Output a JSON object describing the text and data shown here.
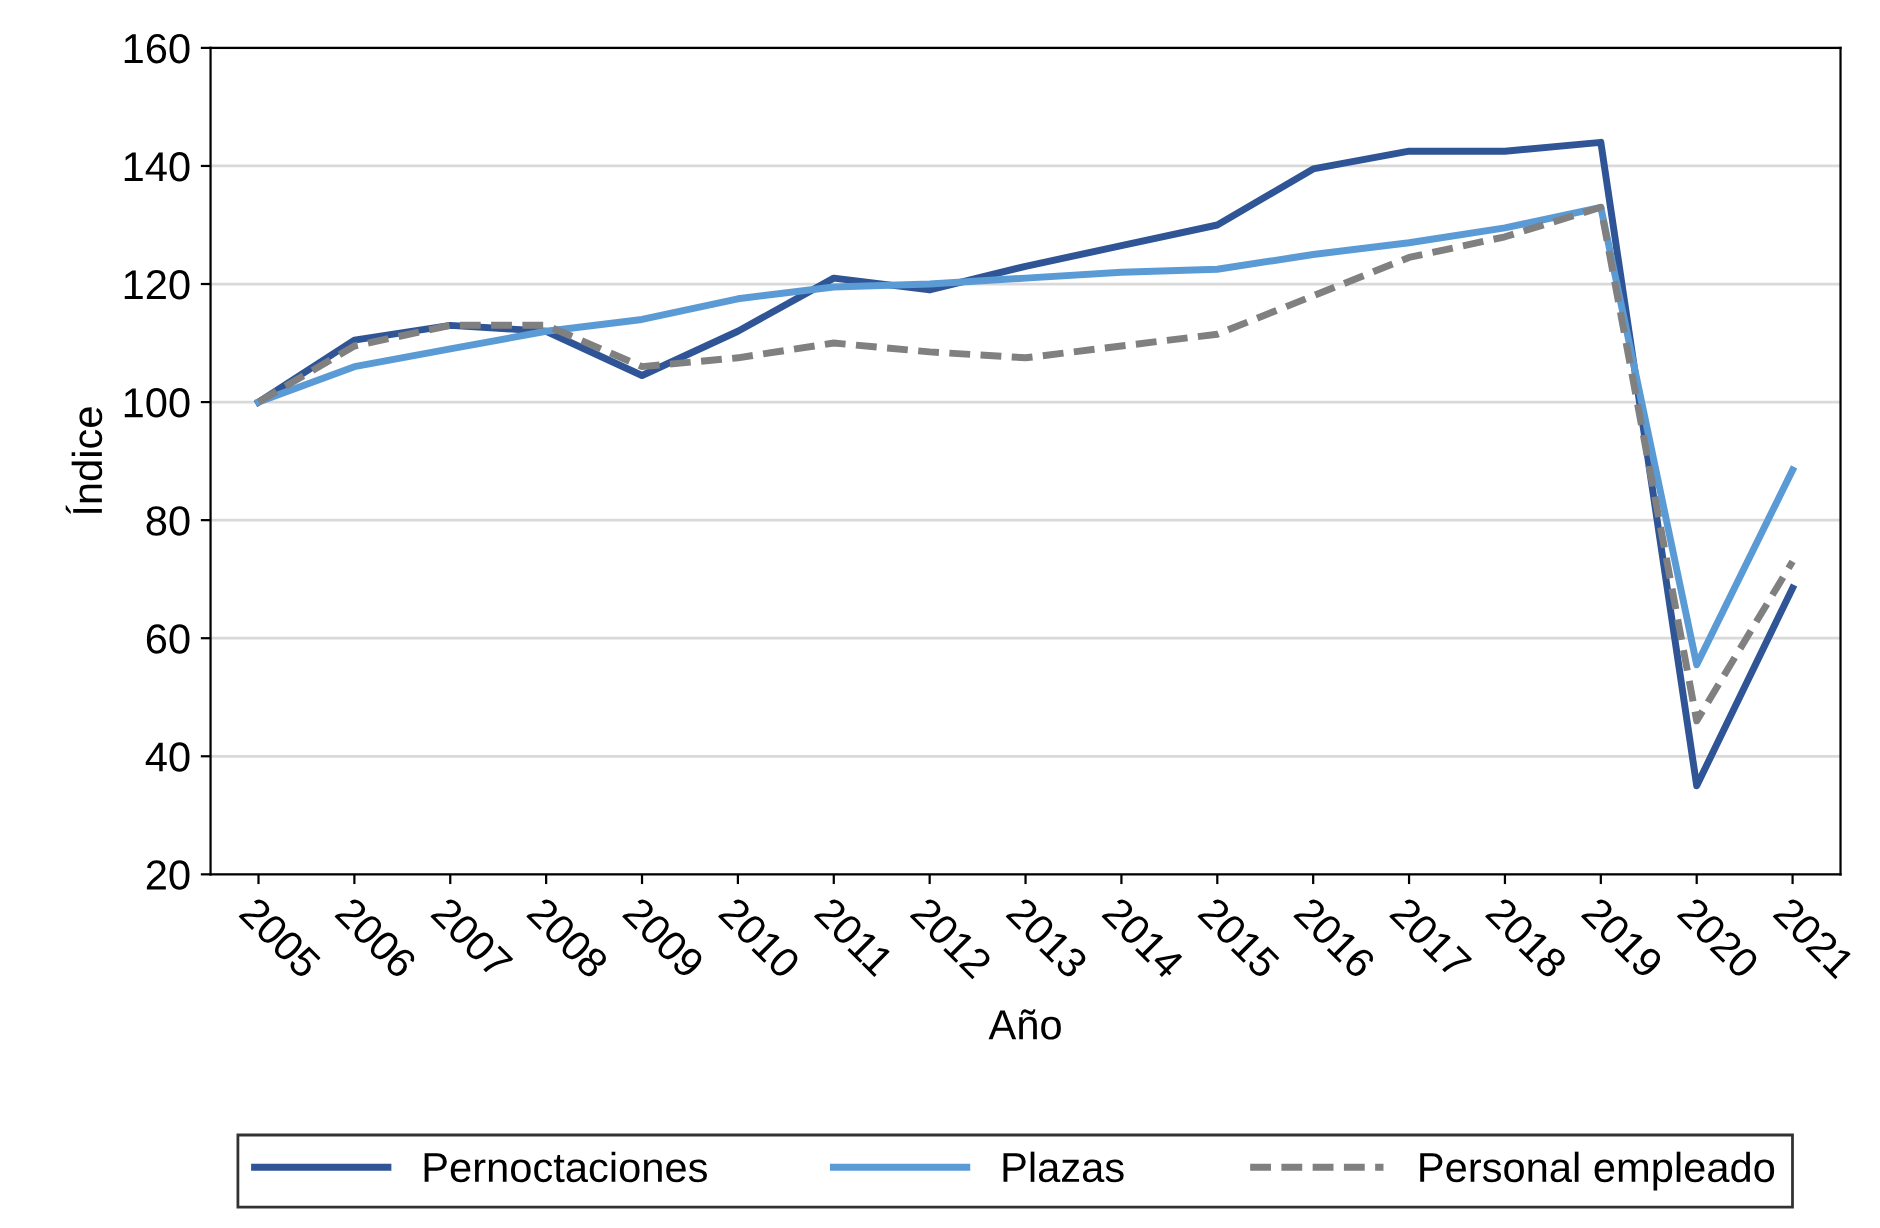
{
  "chart_data": {
    "type": "line",
    "xlabel": "Año",
    "ylabel": "Índice",
    "categories": [
      "2005",
      "2006",
      "2007",
      "2008",
      "2009",
      "2010",
      "2011",
      "2012",
      "2013",
      "2014",
      "2015",
      "2016",
      "2017",
      "2018",
      "2019",
      "2020",
      "2021"
    ],
    "series": [
      {
        "name": "Pernoctaciones",
        "color": "#2f5597",
        "line_style": "solid",
        "values": [
          100,
          110.5,
          113,
          112,
          104.5,
          112,
          121,
          119,
          123,
          126.5,
          130,
          139.5,
          142.5,
          142.5,
          144,
          35,
          68.5
        ]
      },
      {
        "name": "Plazas",
        "color": "#5b9bd5",
        "line_style": "solid",
        "values": [
          100,
          106,
          109,
          112,
          114,
          117.5,
          119.5,
          120,
          121,
          122,
          122.5,
          125,
          127,
          129.5,
          133,
          55.5,
          88.5
        ]
      },
      {
        "name": "Personal empleado",
        "color": "#808080",
        "line_style": "dashed",
        "values": [
          100,
          109.5,
          113,
          113,
          106,
          107.5,
          110,
          108.5,
          107.5,
          109.5,
          111.5,
          118,
          124.5,
          128,
          133,
          46,
          73
        ]
      }
    ],
    "ylim": [
      20,
      160
    ],
    "yticks": [
      20,
      40,
      60,
      80,
      100,
      120,
      140,
      160
    ],
    "grid": "y",
    "legend": "bottom",
    "marker": "none"
  }
}
